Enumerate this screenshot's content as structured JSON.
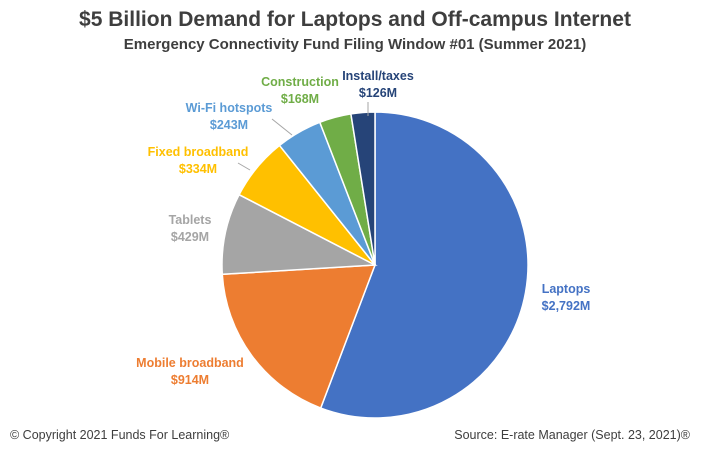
{
  "chart_data": {
    "type": "pie",
    "title": "$5 Billion Demand for Laptops and Off-campus Internet",
    "subtitle": "Emergency Connectivity Fund Filing Window #01 (Summer 2021)",
    "slices": [
      {
        "name": "Laptops",
        "value": 2792,
        "value_label": "$2,792M",
        "color": "#4472C4",
        "label_color": "#4472C4"
      },
      {
        "name": "Mobile broadband",
        "value": 914,
        "value_label": "$914M",
        "color": "#ED7D31",
        "label_color": "#ED7D31"
      },
      {
        "name": "Tablets",
        "value": 429,
        "value_label": "$429M",
        "color": "#A5A5A5",
        "label_color": "#A5A5A5"
      },
      {
        "name": "Fixed broadband",
        "value": 334,
        "value_label": "$334M",
        "color": "#FFC000",
        "label_color": "#FFC000"
      },
      {
        "name": "Wi-Fi hotspots",
        "value": 243,
        "value_label": "$243M",
        "color": "#5B9BD5",
        "label_color": "#5B9BD5"
      },
      {
        "name": "Construction",
        "value": 168,
        "value_label": "$168M",
        "color": "#70AD47",
        "label_color": "#70AD47"
      },
      {
        "name": "Install/taxes",
        "value": 126,
        "value_label": "$126M",
        "color": "#264478",
        "label_color": "#264478"
      }
    ],
    "start": "12 o'clock",
    "direction": "clockwise"
  },
  "footer": {
    "copyright": "© Copyright 2021 Funds For Learning®",
    "source": "Source: E-rate Manager (Sept. 23, 2021)®"
  }
}
